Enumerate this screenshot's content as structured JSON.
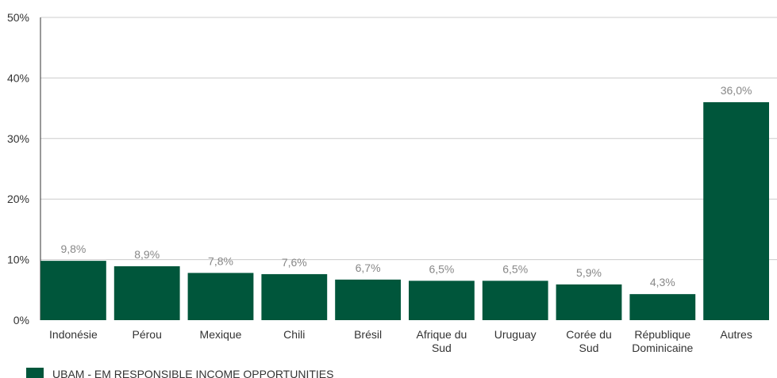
{
  "chart_data": {
    "type": "bar",
    "categories": [
      [
        "Indonésie"
      ],
      [
        "Pérou"
      ],
      [
        "Mexique"
      ],
      [
        "Chili"
      ],
      [
        "Brésil"
      ],
      [
        "Afrique du",
        "Sud"
      ],
      [
        "Uruguay"
      ],
      [
        "Corée du",
        "Sud"
      ],
      [
        "République",
        "Dominicaine"
      ],
      [
        "Autres"
      ]
    ],
    "series": [
      {
        "name": "UBAM - EM RESPONSIBLE INCOME OPPORTUNITIES",
        "values": [
          9.8,
          8.9,
          7.8,
          7.6,
          6.7,
          6.5,
          6.5,
          5.9,
          4.3,
          36.0
        ],
        "labels": [
          "9,8%",
          "8,9%",
          "7,8%",
          "7,6%",
          "6,7%",
          "6,5%",
          "6,5%",
          "5,9%",
          "4,3%",
          "36,0%"
        ],
        "color": "#00563b"
      }
    ],
    "ylim": [
      0,
      50
    ],
    "yticks": [
      0,
      10,
      20,
      30,
      40,
      50
    ],
    "ytick_labels": [
      "0%",
      "10%",
      "20%",
      "30%",
      "40%",
      "50%"
    ],
    "grid": true,
    "legend_position": "bottom-left",
    "colors": {
      "bar": "#00563b",
      "grid": "#cccccc",
      "axis": "#333333"
    }
  }
}
